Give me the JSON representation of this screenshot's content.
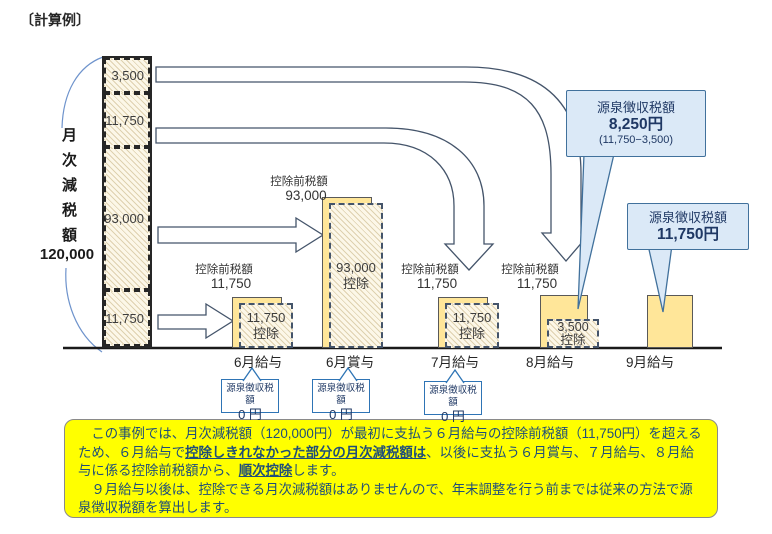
{
  "title": "〔計算例〕",
  "monthly_reduction": {
    "label": "月次減税額",
    "total": "120,000",
    "segments": [
      "3,500",
      "11,750",
      "93,000",
      "11,750"
    ]
  },
  "pretax_label": "控除前税額",
  "deduct_label": "控除",
  "bars": [
    {
      "month": "6月給与",
      "pretax": "11,750",
      "deducted": "11,750"
    },
    {
      "month": "6月賞与",
      "pretax": "93,000",
      "deducted": "93,000"
    },
    {
      "month": "7月給与",
      "pretax": "11,750",
      "deducted": "11,750"
    },
    {
      "month": "8月給与",
      "pretax": "11,750",
      "deducted": "3,500"
    },
    {
      "month": "9月給与"
    }
  ],
  "withholding_callouts": {
    "august": {
      "title": "源泉徴収税額",
      "amount": "8,250円",
      "formula": "(11,750−3,500)"
    },
    "september": {
      "title": "源泉徴収税額",
      "amount": "11,750円"
    },
    "zero_boxes": [
      {
        "title": "源泉徴収税額",
        "amount": "0 円"
      },
      {
        "title": "源泉徴収税額",
        "amount": "0 円"
      },
      {
        "title": "源泉徴収税額",
        "amount": "0 円"
      }
    ]
  },
  "note": {
    "paragraphs": [
      [
        {
          "t": "　この事例では、月次減税額（120,000円）が最初に支払う６月給与の控除前税額（11,750円）を超えるため、６月給与で"
        },
        {
          "t": "控除しきれなかった部分の月次減税額は",
          "em": true
        },
        {
          "t": "、以後に支払う６月賞与、７月給与、８月給与に係る控除前税額から、"
        },
        {
          "t": "順次控除",
          "em": true
        },
        {
          "t": "します。"
        }
      ],
      [
        {
          "t": "　９月給与以後は、控除できる月次減税額はありませんので、年末調整を行う前までは従来の方法で源泉徴収税額を算出します。"
        }
      ]
    ]
  },
  "colors": {
    "bar_fill": "#FFE699",
    "hatch_base": "#FCF7E8",
    "callout_fill": "#DBE9F7",
    "callout_border": "#41719C",
    "arrow_stroke": "#44546A",
    "note_fill": "#FFFF00",
    "note_text": "#1F4E79"
  }
}
